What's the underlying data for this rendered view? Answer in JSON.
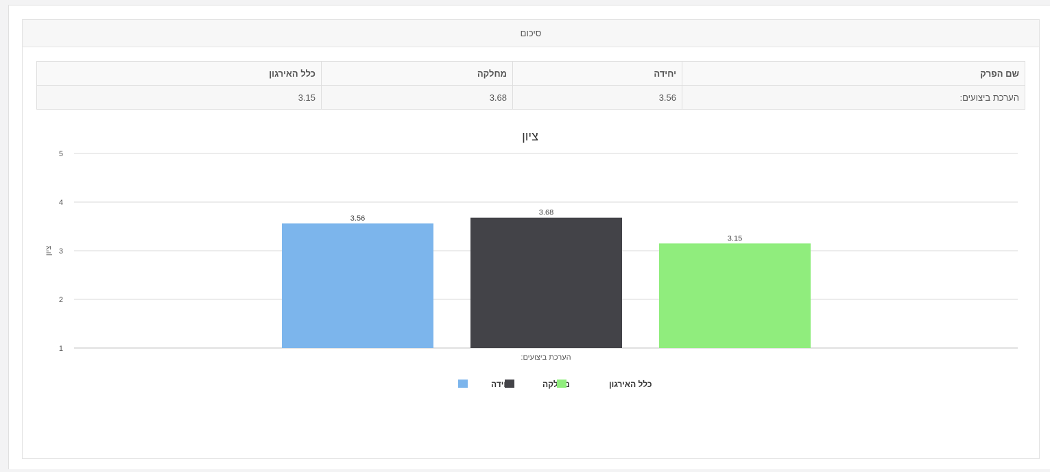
{
  "panel": {
    "title": "סיכום"
  },
  "table": {
    "headers": [
      "שם הפרק",
      "יחידה",
      "מחלקה",
      "כלל האירגון"
    ],
    "rows": [
      [
        "הערכת ביצועים:",
        "3.56",
        "3.68",
        "3.15"
      ]
    ]
  },
  "chart_data": {
    "type": "bar",
    "title": "ציון",
    "ylabel": "ציון",
    "xlabel": "",
    "categories": [
      "הערכת ביצועים:"
    ],
    "ylim": [
      1,
      5
    ],
    "yticks": [
      1,
      2,
      3,
      4,
      5
    ],
    "grid": true,
    "legend_position": "bottom-center",
    "series": [
      {
        "name": "יחידה",
        "values": [
          3.56
        ],
        "color": "#7cb5ec"
      },
      {
        "name": "מחלקה",
        "values": [
          3.68
        ],
        "color": "#434348"
      },
      {
        "name": "כלל האירגון",
        "values": [
          3.15
        ],
        "color": "#90ed7d"
      }
    ]
  }
}
